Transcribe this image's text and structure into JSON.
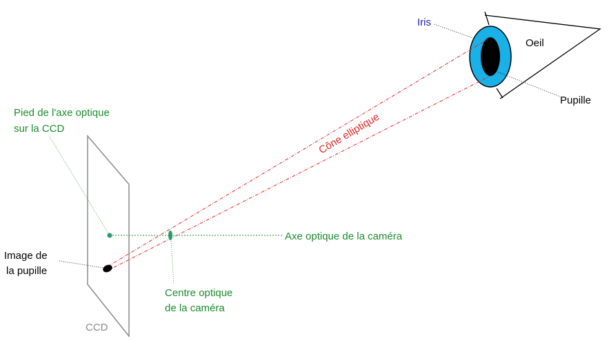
{
  "labels": {
    "iris": "Iris",
    "oeil": "Oeil",
    "pupille": "Pupille",
    "cone": "Cône elliptique",
    "pied_line1": "Pied de l'axe optique",
    "pied_line2": "sur la CCD",
    "axe": "Axe optique de la caméra",
    "image_line1": "Image de",
    "image_line2": "la pupille",
    "centre_line1": "Centre optique",
    "centre_line2": "de la caméra",
    "ccd": "CCD"
  },
  "colors": {
    "green": "#1c8c2c",
    "red": "#e32626",
    "iris_fill": "#1ab0e8",
    "blue_text": "#1a1ab8",
    "ccd_grey": "#8a8a8a"
  }
}
